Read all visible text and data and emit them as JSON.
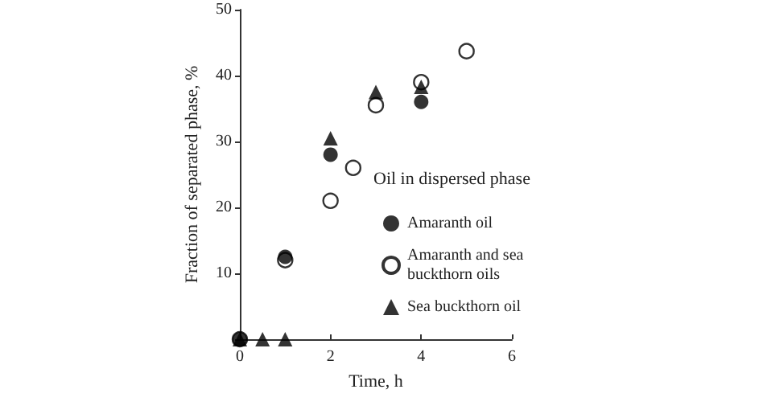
{
  "chart_data": {
    "type": "scatter",
    "xlabel": "Time, h",
    "ylabel": "Fraction of separated phase, %",
    "legend_title": "Oil in dispersed phase",
    "legend": "right",
    "grid": false,
    "xlim": [
      0,
      6
    ],
    "xticks": [
      0,
      2,
      4,
      6
    ],
    "ylim": [
      0,
      50
    ],
    "yticks": [
      {
        "value": 0,
        "label": null
      },
      10,
      20,
      30,
      40,
      50
    ],
    "series": [
      {
        "name": "Amaranth oil",
        "color": "#000000",
        "marker": "circle",
        "x": [
          0,
          1,
          2,
          4
        ],
        "values": [
          0,
          12.5,
          28,
          36
        ]
      },
      {
        "name": "Amaranth and sea buckthorn oils",
        "color": "#000000",
        "marker": "open circle",
        "x": [
          0,
          1,
          2,
          2.5,
          3,
          4,
          5
        ],
        "values": [
          0,
          12,
          21,
          26,
          35.5,
          39,
          43.7
        ]
      },
      {
        "name": "Sea buckthorn oil",
        "color": "#000000",
        "marker": "triangle",
        "x": [
          0,
          0.5,
          1,
          2,
          3,
          4
        ],
        "values": [
          0,
          0,
          0,
          30.5,
          37.5,
          38.3
        ]
      }
    ]
  }
}
